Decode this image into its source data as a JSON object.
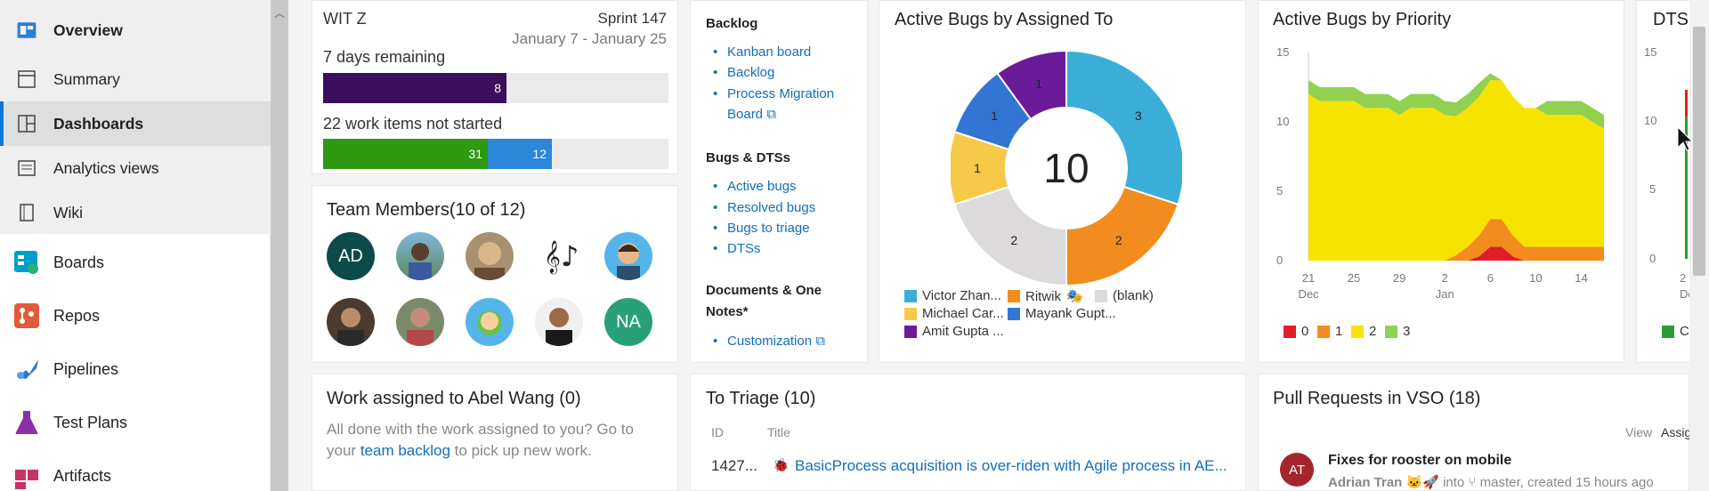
{
  "nav": {
    "sub_items": [
      {
        "label": "Overview",
        "icon": "overview-icon"
      },
      {
        "label": "Summary",
        "icon": "summary-icon"
      },
      {
        "label": "Dashboards",
        "icon": "dashboards-icon"
      },
      {
        "label": "Analytics views",
        "icon": "analytics-icon"
      },
      {
        "label": "Wiki",
        "icon": "wiki-icon"
      }
    ],
    "items": [
      {
        "label": "Boards",
        "icon": "boards-icon",
        "color": "#009ccc"
      },
      {
        "label": "Repos",
        "icon": "repos-icon",
        "color": "#e05b3c"
      },
      {
        "label": "Pipelines",
        "icon": "pipelines-icon",
        "color": "#2f74d0"
      },
      {
        "label": "Test Plans",
        "icon": "test-plans-icon",
        "color": "#8b2fa5"
      },
      {
        "label": "Artifacts",
        "icon": "artifacts-icon",
        "color": "#c73366"
      }
    ]
  },
  "sprint": {
    "team": "WIT Z",
    "sprint": "Sprint 147",
    "dates": "January 7 - January 25",
    "days_remaining": "7 days remaining",
    "bar1_value": "8",
    "not_started": "22 work items not started",
    "bar2_a": "31",
    "bar2_b": "12"
  },
  "team": {
    "title": "Team Members(10 of 12)",
    "avatars": [
      "AD",
      "NA"
    ]
  },
  "links": {
    "backlog_head": "Backlog",
    "kanban": "Kanban board",
    "backlog": "Backlog",
    "pm_board_1": "Process Migration",
    "pm_board_2": "Board",
    "bugs_head": "Bugs & DTSs",
    "active": "Active bugs",
    "resolved": "Resolved bugs",
    "triage": "Bugs to triage",
    "dtss": "DTSs",
    "docs_head_1": "Documents & One",
    "docs_head_2": "Notes*",
    "custom": "Customization"
  },
  "bugs_assigned": {
    "title": "Active Bugs by Assigned To",
    "total": "10",
    "legend": [
      "Victor Zhan...",
      "Ritwik",
      "(blank)",
      "Michael Car...",
      "Mayank Gupt...",
      "Amit Gupta ..."
    ]
  },
  "bugs_priority": {
    "title": "Active Bugs by Priority",
    "legend": [
      "0",
      "1",
      "2",
      "3"
    ]
  },
  "dts": {
    "title": "DTS",
    "legend": "CS"
  },
  "work": {
    "title": "Work assigned to Abel Wang (0)",
    "text_1": "All done with the work assigned to you? Go to",
    "text_2a": "your",
    "link": "team backlog",
    "text_2b": "to pick up new work."
  },
  "triage": {
    "title": "To Triage (10)",
    "col_id": "ID",
    "col_title": "Title",
    "row_id": "1427...",
    "row_title": "BasicProcess acquisition is over-riden with Agile process in AE..."
  },
  "pr": {
    "title": "Pull Requests in VSO (18)",
    "view": "View",
    "assign": "Assig",
    "avatar": "AT",
    "pr_title": "Fixes for rooster on mobile",
    "author": "Adrian Tran",
    "into": "into",
    "branch": "master, created 15 hours ago"
  },
  "chart_data": [
    {
      "type": "pie",
      "title": "Active Bugs by Assigned To",
      "total_label": "10",
      "slices": [
        {
          "label": "Victor Zhan...",
          "value": 3,
          "color": "#3aaed8"
        },
        {
          "label": "Ritwik",
          "value": 2,
          "color": "#f28c1e"
        },
        {
          "label": "(blank)",
          "value": 2,
          "color": "#dcdadb"
        },
        {
          "label": "Michael Car...",
          "value": 1,
          "color": "#f7c948"
        },
        {
          "label": "Mayank Gupt...",
          "value": 1,
          "color": "#3375d5"
        },
        {
          "label": "Amit Gupta ...",
          "value": 1,
          "color": "#6b1b9a"
        }
      ]
    },
    {
      "type": "area",
      "title": "Active Bugs by Priority",
      "ylim": [
        0,
        15
      ],
      "yticks": [
        0,
        5,
        10,
        15
      ],
      "xticks": [
        "21",
        "25",
        "29",
        "2",
        "6",
        "10",
        "14"
      ],
      "xtick_sub": [
        "Dec",
        "",
        "",
        "Jan",
        "",
        "",
        ""
      ],
      "x": [
        0,
        1,
        2,
        3,
        4,
        5,
        6,
        7,
        8,
        9,
        10,
        11,
        12,
        13,
        14,
        15,
        16,
        17,
        18,
        19,
        20,
        21,
        22,
        23,
        24,
        25,
        26
      ],
      "series": [
        {
          "name": "0",
          "color": "#e01e2a",
          "values": [
            0,
            0,
            0,
            0,
            0,
            0,
            0,
            0,
            0,
            0,
            0,
            0,
            0,
            0,
            0,
            0.3,
            1,
            1,
            0.3,
            0,
            0,
            0,
            0,
            0,
            0,
            0,
            0
          ]
        },
        {
          "name": "1",
          "color": "#f28c1e",
          "values": [
            0,
            0,
            0,
            0,
            0,
            0,
            0,
            0,
            0,
            0,
            0,
            0,
            0,
            0.4,
            1,
            1.5,
            2,
            2,
            1.5,
            1,
            1,
            1,
            1,
            1,
            1,
            1,
            1
          ]
        },
        {
          "name": "2",
          "color": "#f7e300",
          "values": [
            12,
            11.5,
            11.5,
            11.5,
            11.5,
            11,
            11,
            11,
            10.5,
            11,
            11,
            11,
            10.5,
            10,
            10,
            10,
            10,
            10,
            10,
            10,
            10,
            9.5,
            9.5,
            9.5,
            9.5,
            9,
            8.5
          ]
        },
        {
          "name": "3",
          "color": "#92d050",
          "values": [
            1,
            1,
            1,
            1,
            1,
            1,
            1,
            1,
            1,
            1,
            1,
            1,
            1,
            1,
            1,
            1,
            0.5,
            0,
            0,
            0,
            0,
            1,
            1,
            1,
            1,
            1,
            1
          ]
        }
      ]
    }
  ]
}
